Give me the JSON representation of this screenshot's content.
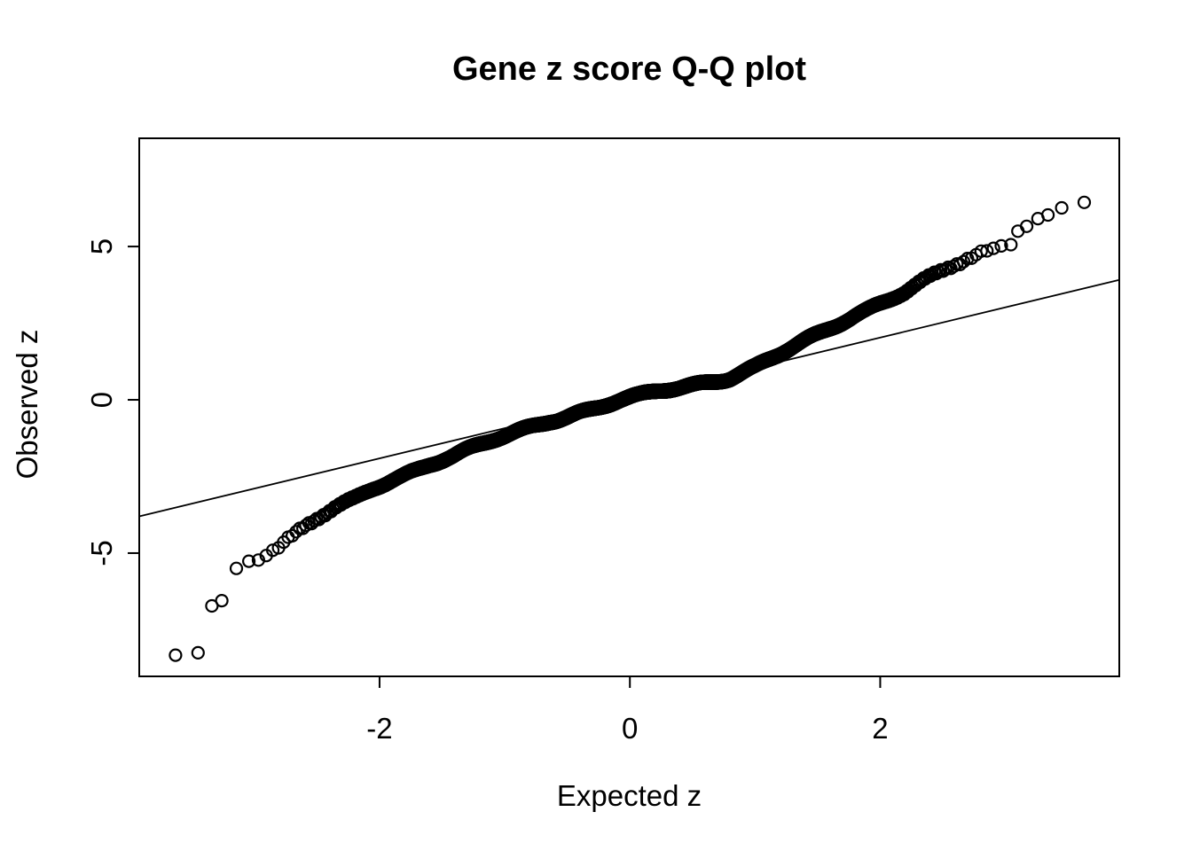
{
  "chart_data": {
    "type": "scatter",
    "title": "Gene z score Q-Q plot",
    "xlabel": "Expected z",
    "ylabel": "Observed z",
    "xlim": [
      -3.92,
      3.91
    ],
    "ylim": [
      -9.02,
      8.53
    ],
    "x_ticks": [
      -2,
      0,
      2
    ],
    "y_ticks": [
      -5,
      0,
      5
    ],
    "grid": false,
    "legend": null,
    "marker": "open-circle",
    "point_color": "#000000",
    "line_color": "#000000",
    "background_color": "#ffffff",
    "n_points": 3000,
    "band_range": [
      -3.22,
      3.06
    ],
    "reference_line": {
      "slope": 0.985,
      "intercept": 0.06
    },
    "curve_anchors": [
      [
        -3.21,
        -5.68
      ],
      [
        -3.13,
        -5.5
      ],
      [
        -3.05,
        -5.28
      ],
      [
        -2.97,
        -5.1
      ],
      [
        -2.9,
        -4.95
      ],
      [
        -2.8,
        -4.7
      ],
      [
        -2.7,
        -4.42
      ],
      [
        -2.6,
        -4.15
      ],
      [
        -2.5,
        -3.9
      ],
      [
        -2.35,
        -3.55
      ],
      [
        -2.2,
        -3.28
      ],
      [
        -2.05,
        -2.9
      ],
      [
        -1.9,
        -2.58
      ],
      [
        -1.75,
        -2.3
      ],
      [
        -1.6,
        -2.05
      ],
      [
        -1.4,
        -1.82
      ],
      [
        -1.2,
        -1.52
      ],
      [
        -1.0,
        -1.22
      ],
      [
        -0.8,
        -0.9
      ],
      [
        -0.64,
        -0.64
      ],
      [
        -0.4,
        -0.38
      ],
      [
        -0.2,
        -0.18
      ],
      [
        0.0,
        0.02
      ],
      [
        0.2,
        0.22
      ],
      [
        0.4,
        0.42
      ],
      [
        0.64,
        0.64
      ],
      [
        0.8,
        0.76
      ],
      [
        1.0,
        1.05
      ],
      [
        1.2,
        1.45
      ],
      [
        1.4,
        1.9
      ],
      [
        1.6,
        2.35
      ],
      [
        1.8,
        2.8
      ],
      [
        2.0,
        3.18
      ],
      [
        2.2,
        3.5
      ],
      [
        2.4,
        3.95
      ],
      [
        2.55,
        4.28
      ],
      [
        2.7,
        4.58
      ],
      [
        2.85,
        4.88
      ],
      [
        3.0,
        5.12
      ],
      [
        3.06,
        5.25
      ]
    ],
    "lower_tail_points": [
      [
        -3.63,
        -8.33
      ],
      [
        -3.45,
        -8.25
      ],
      [
        -3.34,
        -6.72
      ],
      [
        -3.26,
        -6.55
      ]
    ],
    "upper_tail_points": [
      [
        3.1,
        5.5
      ],
      [
        3.17,
        5.66
      ],
      [
        3.26,
        5.91
      ],
      [
        3.34,
        6.03
      ],
      [
        3.45,
        6.26
      ],
      [
        3.63,
        6.44
      ]
    ]
  }
}
